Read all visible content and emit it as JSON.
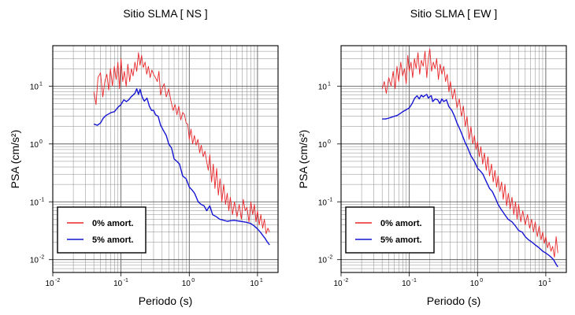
{
  "chart_data": [
    {
      "type": "line",
      "title": "Sitio SLMA [ NS ]",
      "xlabel": "Periodo (s)",
      "ylabel": "PSA (cm/s²)",
      "x_scale": "log",
      "y_scale": "log",
      "xlim": [
        0.01,
        20
      ],
      "ylim": [
        0.006,
        50
      ],
      "grid": true,
      "legend_position": "bottom-left",
      "x_ticks": [
        {
          "base": "10",
          "exp": "-2",
          "value": 0.01
        },
        {
          "base": "10",
          "exp": "-1",
          "value": 0.1
        },
        {
          "base": "10",
          "exp": "0",
          "value": 1
        },
        {
          "base": "10",
          "exp": "1",
          "value": 10
        }
      ],
      "y_ticks": [
        {
          "base": "10",
          "exp": "-2",
          "value": 0.01
        },
        {
          "base": "10",
          "exp": "-1",
          "value": 0.1
        },
        {
          "base": "10",
          "exp": "0",
          "value": 1
        },
        {
          "base": "10",
          "exp": "1",
          "value": 10
        }
      ],
      "series": [
        {
          "name": "0% amort.",
          "color": "#e8262a",
          "x": [
            0.04,
            0.043,
            0.046,
            0.05,
            0.054,
            0.058,
            0.062,
            0.066,
            0.07,
            0.075,
            0.08,
            0.085,
            0.09,
            0.095,
            0.1,
            0.106,
            0.112,
            0.119,
            0.126,
            0.134,
            0.142,
            0.15,
            0.16,
            0.17,
            0.18,
            0.19,
            0.2,
            0.212,
            0.225,
            0.238,
            0.252,
            0.267,
            0.283,
            0.3,
            0.32,
            0.34,
            0.36,
            0.38,
            0.4,
            0.43,
            0.46,
            0.5,
            0.54,
            0.58,
            0.62,
            0.66,
            0.7,
            0.75,
            0.8,
            0.85,
            0.9,
            0.95,
            1.0,
            1.06,
            1.12,
            1.19,
            1.26,
            1.34,
            1.42,
            1.5,
            1.6,
            1.7,
            1.8,
            1.9,
            2.0,
            2.12,
            2.25,
            2.38,
            2.52,
            2.67,
            2.83,
            3.0,
            3.2,
            3.4,
            3.6,
            3.8,
            4.0,
            4.3,
            4.6,
            5.0,
            5.4,
            5.8,
            6.2,
            6.6,
            7.0,
            7.5,
            8.0,
            8.5,
            9.0,
            9.5,
            10.0,
            10.6,
            11.2,
            11.9,
            12.6,
            13.4,
            14.2,
            15.0
          ],
          "y": [
            8,
            4.8,
            14,
            17,
            6.5,
            12,
            16,
            8.5,
            20,
            10,
            22,
            13,
            26,
            9,
            30,
            12,
            18,
            9.8,
            24,
            12,
            20,
            15,
            26,
            18,
            38,
            23,
            34,
            21,
            26,
            16,
            22,
            14,
            19,
            16,
            14,
            12,
            18,
            7,
            9,
            11,
            6.5,
            9,
            5.5,
            3.8,
            4.8,
            3.2,
            4.5,
            2.6,
            3.5,
            3.2,
            2.3,
            2.2,
            1.2,
            1.8,
            1.0,
            1.4,
            0.95,
            1.2,
            0.7,
            0.95,
            0.6,
            0.75,
            0.5,
            0.35,
            0.65,
            0.22,
            0.45,
            0.17,
            0.38,
            0.13,
            0.25,
            0.1,
            0.2,
            0.09,
            0.14,
            0.07,
            0.12,
            0.06,
            0.1,
            0.055,
            0.09,
            0.05,
            0.11,
            0.07,
            0.08,
            0.045,
            0.1,
            0.06,
            0.09,
            0.045,
            0.07,
            0.04,
            0.06,
            0.035,
            0.05,
            0.028,
            0.035,
            0.03
          ]
        },
        {
          "name": "5% amort.",
          "color": "#1515d4",
          "x": [
            0.04,
            0.045,
            0.05,
            0.055,
            0.06,
            0.066,
            0.072,
            0.08,
            0.09,
            0.1,
            0.11,
            0.12,
            0.13,
            0.14,
            0.15,
            0.16,
            0.17,
            0.18,
            0.19,
            0.2,
            0.21,
            0.22,
            0.24,
            0.26,
            0.28,
            0.3,
            0.32,
            0.35,
            0.38,
            0.42,
            0.46,
            0.5,
            0.55,
            0.6,
            0.66,
            0.72,
            0.8,
            0.9,
            1.0,
            1.1,
            1.2,
            1.35,
            1.5,
            1.65,
            1.8,
            2.0,
            2.2,
            2.5,
            2.8,
            3.2,
            3.6,
            4.0,
            4.5,
            5.0,
            5.6,
            6.3,
            7.0,
            8.0,
            9.0,
            10.0,
            11.0,
            12.0,
            13.0,
            14.0,
            15.0
          ],
          "y": [
            2.2,
            2.1,
            2.3,
            2.8,
            3.1,
            3.3,
            3.5,
            3.6,
            4.3,
            4.8,
            5.8,
            5.4,
            5.8,
            6.5,
            7.0,
            7.5,
            9.0,
            7.2,
            8.8,
            7.0,
            6.0,
            5.5,
            6.2,
            4.5,
            3.8,
            3.8,
            3.2,
            3.0,
            2.1,
            1.7,
            1.4,
            1.0,
            0.85,
            0.55,
            0.5,
            0.45,
            0.28,
            0.25,
            0.18,
            0.16,
            0.14,
            0.1,
            0.09,
            0.085,
            0.07,
            0.085,
            0.06,
            0.055,
            0.05,
            0.048,
            0.046,
            0.047,
            0.048,
            0.047,
            0.046,
            0.045,
            0.044,
            0.042,
            0.038,
            0.034,
            0.03,
            0.026,
            0.023,
            0.02,
            0.018
          ]
        }
      ]
    },
    {
      "type": "line",
      "title": "Sitio SLMA [ EW ]",
      "xlabel": "Periodo (s)",
      "ylabel": "PSA (cm/s²)",
      "x_scale": "log",
      "y_scale": "log",
      "xlim": [
        0.01,
        20
      ],
      "ylim": [
        0.006,
        50
      ],
      "grid": true,
      "legend_position": "bottom-left",
      "x_ticks": [
        {
          "base": "10",
          "exp": "-2",
          "value": 0.01
        },
        {
          "base": "10",
          "exp": "-1",
          "value": 0.1
        },
        {
          "base": "10",
          "exp": "0",
          "value": 1
        },
        {
          "base": "10",
          "exp": "1",
          "value": 10
        }
      ],
      "y_ticks": [
        {
          "base": "10",
          "exp": "-2",
          "value": 0.01
        },
        {
          "base": "10",
          "exp": "-1",
          "value": 0.1
        },
        {
          "base": "10",
          "exp": "0",
          "value": 1
        },
        {
          "base": "10",
          "exp": "1",
          "value": 10
        }
      ],
      "series": [
        {
          "name": "0% amort.",
          "color": "#e8262a",
          "x": [
            0.04,
            0.043,
            0.046,
            0.05,
            0.054,
            0.058,
            0.062,
            0.066,
            0.07,
            0.075,
            0.08,
            0.085,
            0.09,
            0.095,
            0.1,
            0.106,
            0.112,
            0.119,
            0.126,
            0.134,
            0.142,
            0.15,
            0.16,
            0.17,
            0.18,
            0.19,
            0.2,
            0.212,
            0.225,
            0.238,
            0.252,
            0.267,
            0.283,
            0.3,
            0.32,
            0.34,
            0.36,
            0.38,
            0.4,
            0.43,
            0.46,
            0.5,
            0.54,
            0.58,
            0.62,
            0.66,
            0.7,
            0.75,
            0.8,
            0.85,
            0.9,
            0.95,
            1.0,
            1.06,
            1.12,
            1.19,
            1.26,
            1.34,
            1.42,
            1.5,
            1.6,
            1.7,
            1.8,
            1.9,
            2.0,
            2.12,
            2.25,
            2.38,
            2.52,
            2.67,
            2.83,
            3.0,
            3.2,
            3.4,
            3.6,
            3.8,
            4.0,
            4.3,
            4.6,
            5.0,
            5.4,
            5.8,
            6.2,
            6.6,
            7.0,
            7.5,
            8.0,
            8.5,
            9.0,
            9.5,
            10.0,
            10.6,
            11.2,
            11.9,
            12.6,
            13.4,
            14.2,
            15.0
          ],
          "y": [
            9,
            12,
            7.5,
            14,
            10,
            18,
            9,
            22,
            12,
            26,
            15,
            20,
            11,
            34,
            18,
            26,
            14,
            30,
            20,
            38,
            16,
            28,
            22,
            40,
            14,
            30,
            44,
            18,
            26,
            20,
            30,
            13,
            24,
            16,
            22,
            12,
            16,
            8,
            12,
            6,
            9,
            4.2,
            6,
            3.0,
            4.5,
            2.0,
            3.0,
            1.2,
            2.0,
            1.0,
            1.4,
            0.8,
            1.1,
            0.6,
            0.9,
            0.45,
            0.7,
            0.35,
            0.6,
            0.28,
            0.45,
            0.22,
            0.35,
            0.18,
            0.28,
            0.15,
            0.22,
            0.11,
            0.2,
            0.085,
            0.14,
            0.075,
            0.12,
            0.06,
            0.1,
            0.05,
            0.09,
            0.045,
            0.07,
            0.04,
            0.06,
            0.035,
            0.05,
            0.03,
            0.045,
            0.025,
            0.038,
            0.022,
            0.03,
            0.019,
            0.025,
            0.016,
            0.02,
            0.014,
            0.017,
            0.011,
            0.025,
            0.013
          ]
        },
        {
          "name": "5% amort.",
          "color": "#1515d4",
          "x": [
            0.04,
            0.045,
            0.05,
            0.055,
            0.06,
            0.066,
            0.072,
            0.08,
            0.09,
            0.1,
            0.11,
            0.12,
            0.13,
            0.14,
            0.15,
            0.16,
            0.17,
            0.18,
            0.19,
            0.2,
            0.21,
            0.22,
            0.24,
            0.26,
            0.28,
            0.3,
            0.32,
            0.35,
            0.38,
            0.42,
            0.46,
            0.5,
            0.55,
            0.6,
            0.66,
            0.72,
            0.8,
            0.9,
            1.0,
            1.1,
            1.2,
            1.35,
            1.5,
            1.65,
            1.8,
            2.0,
            2.2,
            2.5,
            2.8,
            3.2,
            3.6,
            4.0,
            4.5,
            5.0,
            5.6,
            6.3,
            7.0,
            8.0,
            9.0,
            10.0,
            11.0,
            12.0,
            13.0,
            14.0,
            15.0
          ],
          "y": [
            2.7,
            2.7,
            2.8,
            2.9,
            3.0,
            3.1,
            3.3,
            3.6,
            3.9,
            4.2,
            5.0,
            6.2,
            6.8,
            6.0,
            7.0,
            6.5,
            6.9,
            7.2,
            6.2,
            6.6,
            6.8,
            5.4,
            6.0,
            5.8,
            5.0,
            6.0,
            5.4,
            5.8,
            4.4,
            3.8,
            3.0,
            2.3,
            1.8,
            1.4,
            1.05,
            0.85,
            0.62,
            0.5,
            0.38,
            0.34,
            0.3,
            0.22,
            0.17,
            0.15,
            0.12,
            0.09,
            0.075,
            0.06,
            0.05,
            0.045,
            0.038,
            0.032,
            0.03,
            0.025,
            0.022,
            0.02,
            0.018,
            0.016,
            0.014,
            0.013,
            0.012,
            0.011,
            0.01,
            0.0085,
            0.0075
          ]
        }
      ]
    }
  ]
}
